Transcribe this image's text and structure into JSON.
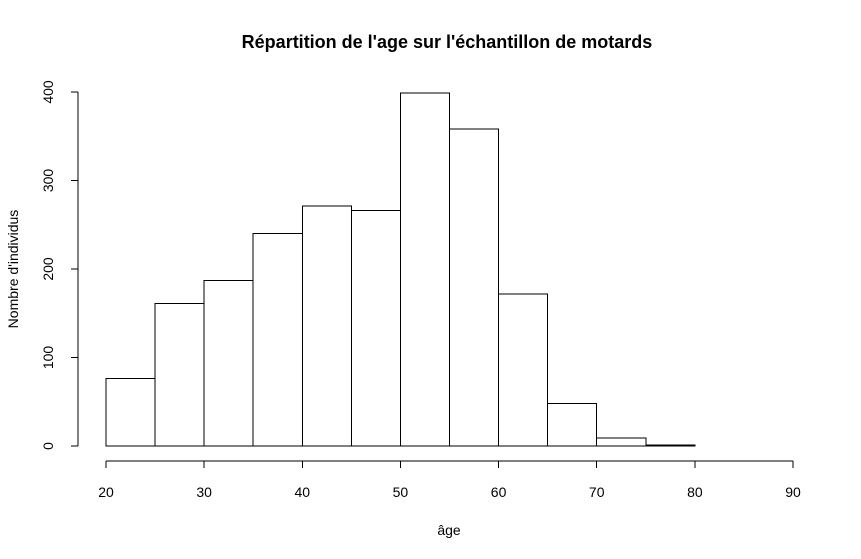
{
  "chart_data": {
    "type": "bar",
    "title": "Répartition de l'age sur l'échantillon de motards",
    "xlabel": "âge",
    "ylabel": "Nombre d'individus",
    "bins": [
      {
        "x0": 20,
        "x1": 25,
        "count": 76
      },
      {
        "x0": 25,
        "x1": 30,
        "count": 161
      },
      {
        "x0": 30,
        "x1": 35,
        "count": 187
      },
      {
        "x0": 35,
        "x1": 40,
        "count": 240
      },
      {
        "x0": 40,
        "x1": 45,
        "count": 271
      },
      {
        "x0": 45,
        "x1": 50,
        "count": 266
      },
      {
        "x0": 50,
        "x1": 55,
        "count": 399
      },
      {
        "x0": 55,
        "x1": 60,
        "count": 358
      },
      {
        "x0": 60,
        "x1": 65,
        "count": 172
      },
      {
        "x0": 65,
        "x1": 70,
        "count": 48
      },
      {
        "x0": 70,
        "x1": 75,
        "count": 9
      },
      {
        "x0": 75,
        "x1": 80,
        "count": 1
      },
      {
        "x0": 80,
        "x1": 85,
        "count": 0
      },
      {
        "x0": 85,
        "x1": 90,
        "count": 0
      }
    ],
    "xlim": [
      20,
      90
    ],
    "ylim": [
      0,
      400
    ],
    "xticks": [
      20,
      30,
      40,
      50,
      60,
      70,
      80,
      90
    ],
    "yticks": [
      0,
      100,
      200,
      300,
      400
    ],
    "grid": false,
    "bar_fill": "#ffffff",
    "bar_stroke": "#000000"
  }
}
